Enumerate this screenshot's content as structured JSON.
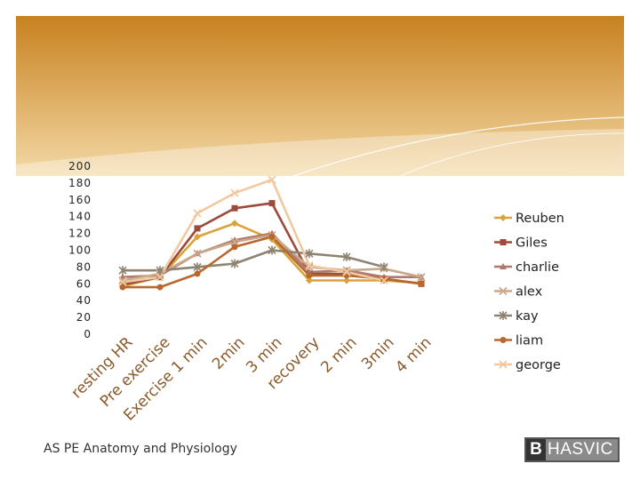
{
  "footer": {
    "subtitle": "AS PE Anatomy and Physiology",
    "logo_mark": "B",
    "logo_word": "HASVIC"
  },
  "colors": {
    "banner_dark": "#C8811F",
    "banner_light": "#F3D9A6"
  },
  "chart_data": {
    "type": "line",
    "title": "",
    "xlabel": "",
    "ylabel": "",
    "ylim": [
      0,
      200
    ],
    "yticks": [
      0,
      20,
      40,
      60,
      80,
      100,
      120,
      140,
      160,
      180,
      200
    ],
    "categories": [
      "resting HR",
      "Pre exercise",
      "Exercise 1 min",
      "2min",
      "3 min",
      "recovery",
      "2 min",
      "3min",
      "4 min"
    ],
    "legend_position": "right",
    "series": [
      {
        "name": "Reuben",
        "color": "#D9A33A",
        "marker": "diamond",
        "values": [
          57,
          68,
          116,
          132,
          113,
          64,
          64,
          64,
          61
        ]
      },
      {
        "name": "Giles",
        "color": "#9E4A3A",
        "marker": "square",
        "values": [
          59,
          68,
          126,
          150,
          156,
          72,
          72,
          66,
          60
        ]
      },
      {
        "name": "charlie",
        "color": "#B0786A",
        "marker": "triangle",
        "values": [
          68,
          70,
          96,
          112,
          120,
          74,
          76,
          68,
          68
        ]
      },
      {
        "name": "alex",
        "color": "#C9A989",
        "marker": "x",
        "values": [
          64,
          72,
          96,
          110,
          118,
          80,
          76,
          78,
          68
        ]
      },
      {
        "name": "kay",
        "color": "#8E8370",
        "marker": "star",
        "values": [
          76,
          76,
          80,
          84,
          100,
          96,
          92,
          80,
          null
        ]
      },
      {
        "name": "liam",
        "color": "#B8682E",
        "marker": "circle",
        "values": [
          56,
          56,
          72,
          104,
          116,
          70,
          70,
          66,
          60
        ]
      },
      {
        "name": "george",
        "color": "#F1C8A0",
        "marker": "x",
        "values": [
          62,
          68,
          144,
          168,
          184,
          82,
          74,
          64,
          null
        ]
      }
    ]
  }
}
